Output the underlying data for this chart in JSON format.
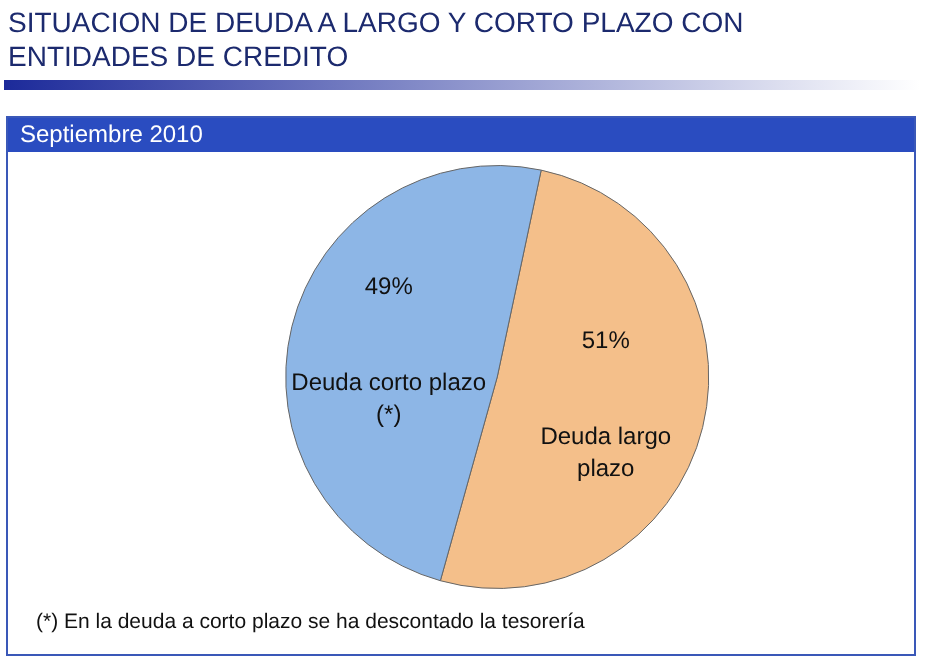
{
  "chart_data": {
    "type": "pie",
    "title": "SITUACION DE DEUDA A LARGO Y CORTO PLAZO CON ENTIDADES DE CREDITO",
    "subtitle": "Septiembre 2010",
    "categories": [
      "Deuda largo plazo",
      "Deuda corto plazo (*)"
    ],
    "values": [
      51,
      49
    ],
    "value_labels": [
      "51%",
      "49%"
    ],
    "colors": [
      "#f4bf8a",
      "#8db6e6"
    ],
    "annotations": [
      "(*) En la deuda a corto plazo se ha descontado la tesorería"
    ]
  }
}
